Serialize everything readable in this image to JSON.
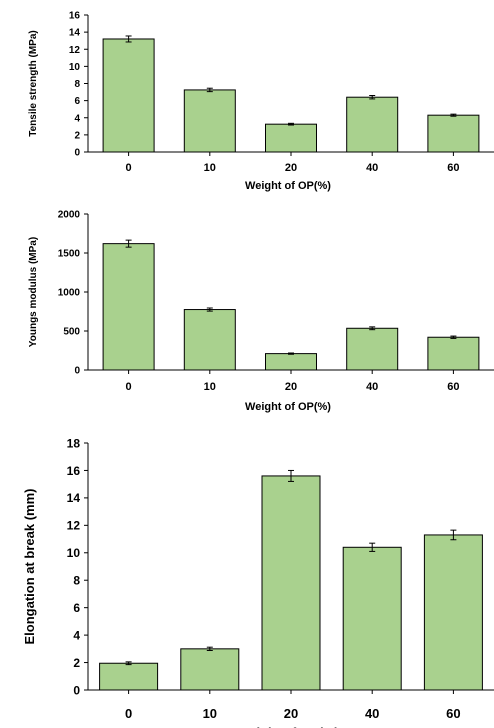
{
  "colors": {
    "bar_fill": "#a9d18e",
    "bar_stroke": "#000000",
    "axis": "#000000"
  },
  "chart_data": [
    {
      "type": "bar",
      "categories": [
        "0",
        "10",
        "20",
        "40",
        "60"
      ],
      "values": [
        13.2,
        7.25,
        3.25,
        6.4,
        4.3
      ],
      "errors": [
        0.35,
        0.2,
        0.1,
        0.2,
        0.12
      ],
      "xlabel": "Weight of OP(%)",
      "ylabel": "Tensile strength (MPa)",
      "ylim": [
        0,
        16
      ],
      "yticks": [
        "0",
        "2",
        "4",
        "6",
        "8",
        "10",
        "12",
        "14",
        "16"
      ],
      "grid": false
    },
    {
      "type": "bar",
      "categories": [
        "0",
        "10",
        "20",
        "40",
        "60"
      ],
      "values": [
        1620,
        775,
        210,
        535,
        420
      ],
      "errors": [
        45,
        20,
        8,
        18,
        15
      ],
      "xlabel": "Weight of OP(%)",
      "ylabel": "Youngs modulus (MPa)",
      "ylim": [
        0,
        2000
      ],
      "yticks": [
        "0",
        "500",
        "1000",
        "1500",
        "2000"
      ],
      "grid": false
    },
    {
      "type": "bar",
      "categories": [
        "0",
        "10",
        "20",
        "40",
        "60"
      ],
      "values": [
        1.95,
        3.0,
        15.6,
        10.4,
        11.3
      ],
      "errors": [
        0.1,
        0.12,
        0.4,
        0.3,
        0.35
      ],
      "xlabel": "Weight of OP(%)",
      "ylabel": "Elongation at break (mm)",
      "ylim": [
        0,
        18
      ],
      "yticks": [
        "0",
        "2",
        "4",
        "6",
        "8",
        "10",
        "12",
        "14",
        "16",
        "18"
      ],
      "grid": false
    }
  ]
}
